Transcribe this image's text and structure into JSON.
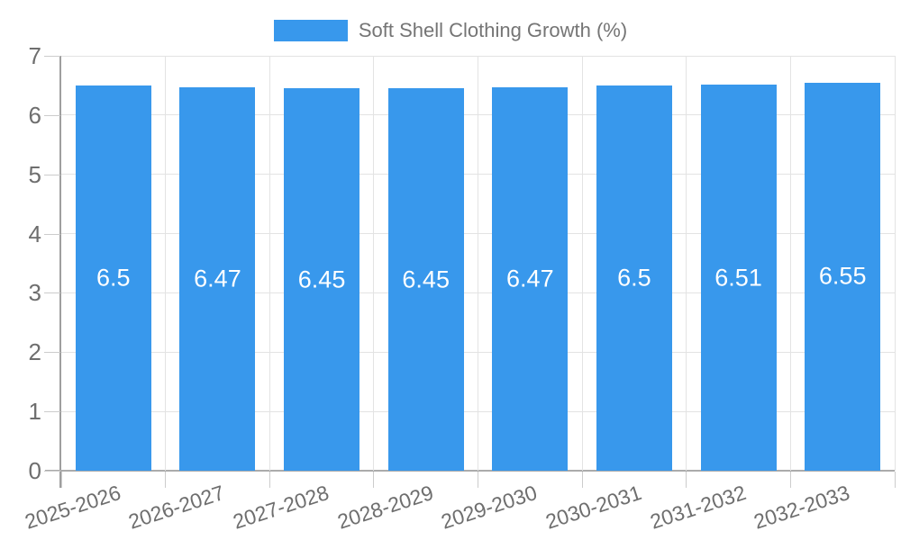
{
  "legend": {
    "label": "Soft Shell Clothing Growth (%)"
  },
  "chart_data": {
    "type": "bar",
    "title": "Soft Shell Clothing Growth (%)",
    "categories": [
      "2025-2026",
      "2026-2027",
      "2027-2028",
      "2028-2029",
      "2029-2030",
      "2030-2031",
      "2031-2032",
      "2032-2033"
    ],
    "values": [
      6.5,
      6.47,
      6.45,
      6.45,
      6.47,
      6.5,
      6.51,
      6.55
    ],
    "value_labels": [
      "6.5",
      "6.47",
      "6.45",
      "6.45",
      "6.47",
      "6.5",
      "6.51",
      "6.55"
    ],
    "xlabel": "",
    "ylabel": "",
    "ylim": [
      0,
      7
    ],
    "yticks": [
      0,
      1,
      2,
      3,
      4,
      5,
      6,
      7
    ],
    "grid": true,
    "legend_position": "top-center",
    "bar_labels_position": "inside-center",
    "colors": {
      "bar": "#3898ec",
      "bar_label_text": "#ffffff",
      "legend_text": "#757575",
      "axis_text": "#6e6e6e",
      "gridline": "#e3e3e3",
      "tick": "#cccccc",
      "y_axis_line": "#9e9e9e",
      "x_axis_line": "#ababab"
    }
  }
}
